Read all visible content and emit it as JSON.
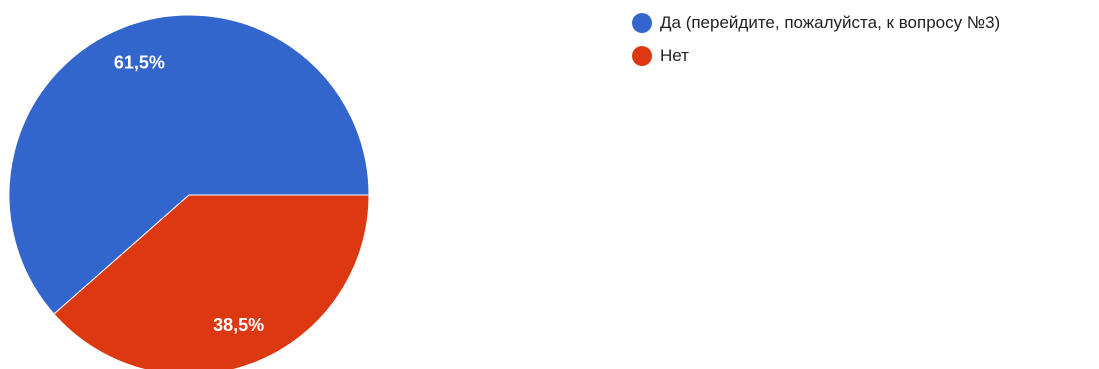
{
  "chart_data": {
    "type": "pie",
    "categories": [
      "Да (перейдите, пожалуйста, к вопросу №3)",
      "Нет"
    ],
    "values": [
      61.5,
      38.5
    ],
    "value_labels": [
      "61,5%",
      "38,5%"
    ],
    "colors": [
      "#3366cc",
      "#dc3912"
    ],
    "title": "",
    "legend_position": "right",
    "start_angle_deg": 90,
    "direction": "counterclockwise"
  },
  "legend": {
    "items": [
      {
        "label": "Да (перейдите, пожалуйста, к вопросу №3)",
        "color": "#3366cc"
      },
      {
        "label": "Нет",
        "color": "#dc3912"
      }
    ]
  }
}
